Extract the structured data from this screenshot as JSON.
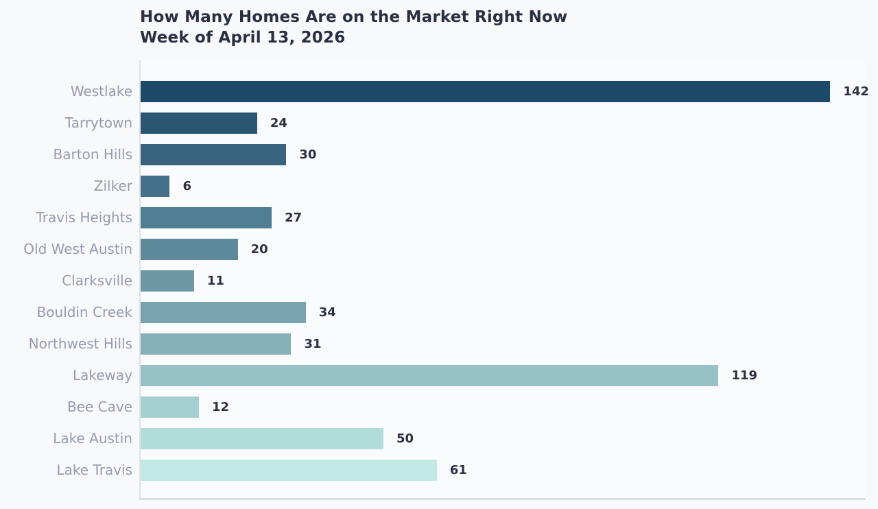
{
  "title": {
    "line1": "How Many Homes Are on the Market Right Now",
    "line2": "Week of April 13, 2026"
  },
  "chart_data": {
    "type": "bar",
    "orientation": "horizontal",
    "title": "How Many Homes Are on the Market Right Now",
    "subtitle": "Week of April 13, 2026",
    "categories": [
      "Westlake",
      "Tarrytown",
      "Barton Hills",
      "Zilker",
      "Travis Heights",
      "Old West Austin",
      "Clarksville",
      "Bouldin Creek",
      "Northwest Hills",
      "Lakeway",
      "Bee Cave",
      "Lake Austin",
      "Lake Travis"
    ],
    "values": [
      142,
      24,
      30,
      6,
      27,
      20,
      11,
      34,
      31,
      119,
      12,
      50,
      61
    ],
    "bar_colors": [
      "#1d4a68",
      "#2b5672",
      "#38637d",
      "#447089",
      "#507e92",
      "#5d8a9a",
      "#6c97a5",
      "#78a4b0",
      "#85afb9",
      "#96c1c6",
      "#a3cfd0",
      "#b0dcda",
      "#c2e8e4"
    ],
    "xlim": [
      0,
      149.3
    ],
    "grid": false,
    "value_labels_shown": true,
    "legend": null,
    "xlabel": "",
    "ylabel": ""
  },
  "colors": {
    "background": "#f8f9fb",
    "plot_background": "#fafbfd",
    "title_text": "#2a2f42",
    "category_label_text": "#959bae",
    "value_label_text": "#2b3142",
    "axis_line": "#dcdddf"
  }
}
